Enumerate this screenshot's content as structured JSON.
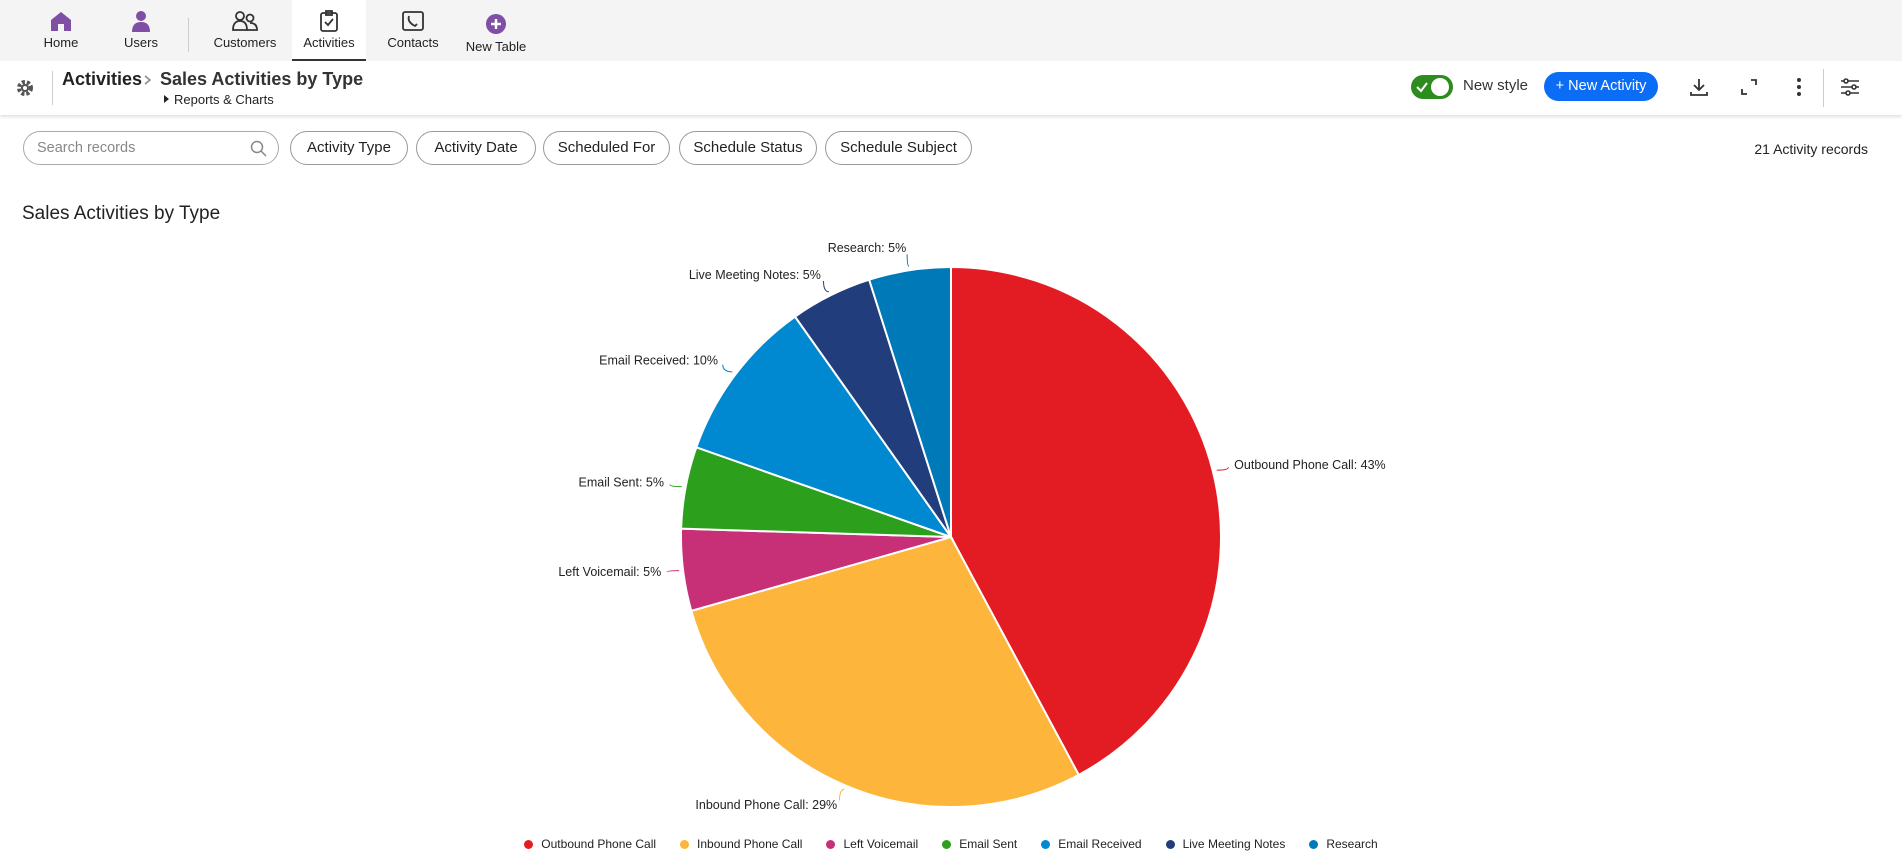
{
  "nav": {
    "items": [
      {
        "label": "Home"
      },
      {
        "label": "Users"
      },
      {
        "label": "Customers"
      },
      {
        "label": "Activities"
      },
      {
        "label": "Contacts"
      },
      {
        "label": "New Table"
      }
    ]
  },
  "header": {
    "section": "Activities",
    "title": "Sales Activities by Type",
    "subtitle": "Reports & Charts",
    "toggle_label": "New style",
    "button": "+ New Activity"
  },
  "filters": {
    "search_placeholder": "Search records",
    "pills": [
      "Activity Type",
      "Activity Date",
      "Scheduled For",
      "Schedule Status",
      "Schedule Subject"
    ],
    "record_count": "21 Activity records"
  },
  "chart_data": {
    "type": "pie",
    "title": "Sales Activities by Type",
    "categories": [
      "Outbound Phone Call",
      "Inbound Phone Call",
      "Left Voicemail",
      "Email Sent",
      "Email Received",
      "Live Meeting Notes",
      "Research"
    ],
    "values": [
      43,
      29,
      5,
      5,
      10,
      5,
      5
    ],
    "value_labels": [
      "Outbound Phone Call: 43%",
      "Inbound Phone Call: 29%",
      "Left Voicemail: 5%",
      "Email Sent: 5%",
      "Email Received: 10%",
      "Live Meeting Notes: 5%",
      "Research: 5%"
    ],
    "colors": [
      "#e31c23",
      "#fdb53c",
      "#c72f77",
      "#2ca01c",
      "#0088d1",
      "#223d7b",
      "#0079b8"
    ],
    "legend": "bottom"
  }
}
